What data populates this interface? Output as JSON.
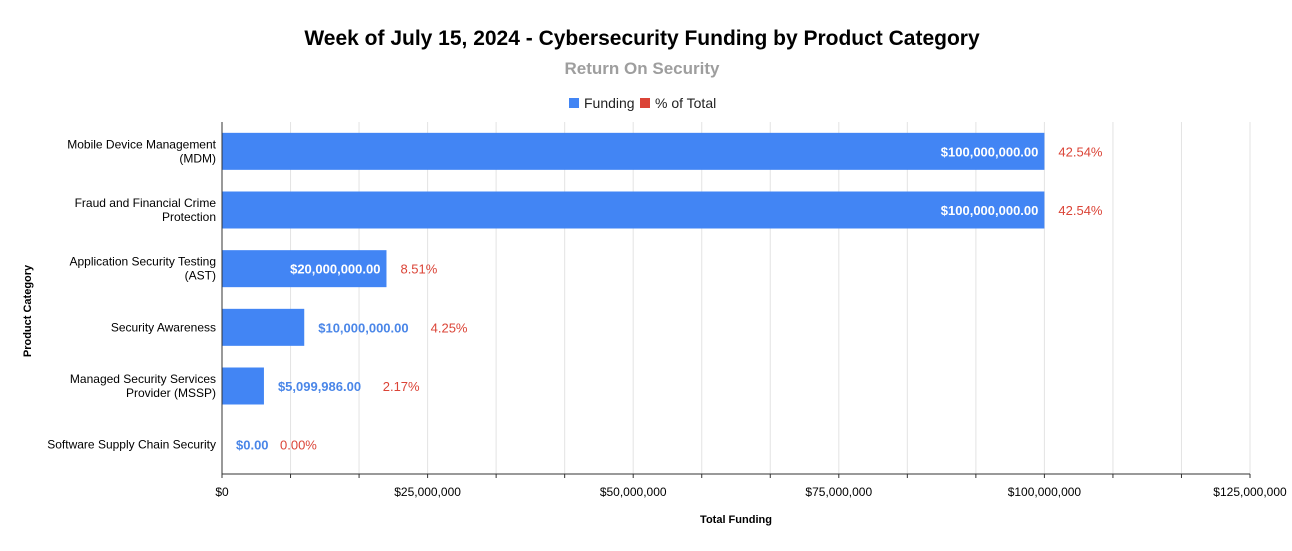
{
  "chart_data": {
    "type": "bar",
    "orientation": "horizontal",
    "title": "Week of July 15, 2024 - Cybersecurity Funding by Product Category",
    "subtitle": "Return On Security",
    "xlabel": "Total Funding",
    "ylabel": "Product Category",
    "xlim": [
      0,
      125000000
    ],
    "x_ticks": [
      0,
      25000000,
      50000000,
      75000000,
      100000000,
      125000000
    ],
    "x_tick_labels": [
      "$0",
      "$25,000,000",
      "$50,000,000",
      "$75,000,000",
      "$100,000,000",
      "$125,000,000"
    ],
    "grid": true,
    "legend": {
      "position": "top",
      "entries": [
        {
          "name": "Funding",
          "color": "#4285f4"
        },
        {
          "name": "% of Total",
          "color": "#db4437"
        }
      ]
    },
    "categories": [
      [
        "Mobile Device Management",
        "(MDM)"
      ],
      [
        "Fraud and Financial Crime",
        "Protection"
      ],
      [
        "Application Security Testing",
        "(AST)"
      ],
      [
        "Security Awareness"
      ],
      [
        "Managed Security Services",
        "Provider (MSSP)"
      ],
      [
        "Software Supply Chain Security"
      ]
    ],
    "series": [
      {
        "name": "Funding",
        "values": [
          100000000,
          100000000,
          20000000,
          10000000,
          5099986,
          0
        ],
        "labels": [
          "$100,000,000.00",
          "$100,000,000.00",
          "$20,000,000.00",
          "$10,000,000.00",
          "$5,099,986.00",
          "$0.00"
        ]
      },
      {
        "name": "% of Total",
        "values": [
          42.54,
          42.54,
          8.51,
          4.25,
          2.17,
          0.0
        ],
        "labels": [
          "42.54%",
          "42.54%",
          "8.51%",
          "4.25%",
          "2.17%",
          "0.00%"
        ]
      }
    ],
    "colors": {
      "bar": "#4285f4",
      "pct_text": "#db4437",
      "outside_value_text": "#4a86e8",
      "grid": "#e3e3e3",
      "axis": "#333333"
    }
  }
}
